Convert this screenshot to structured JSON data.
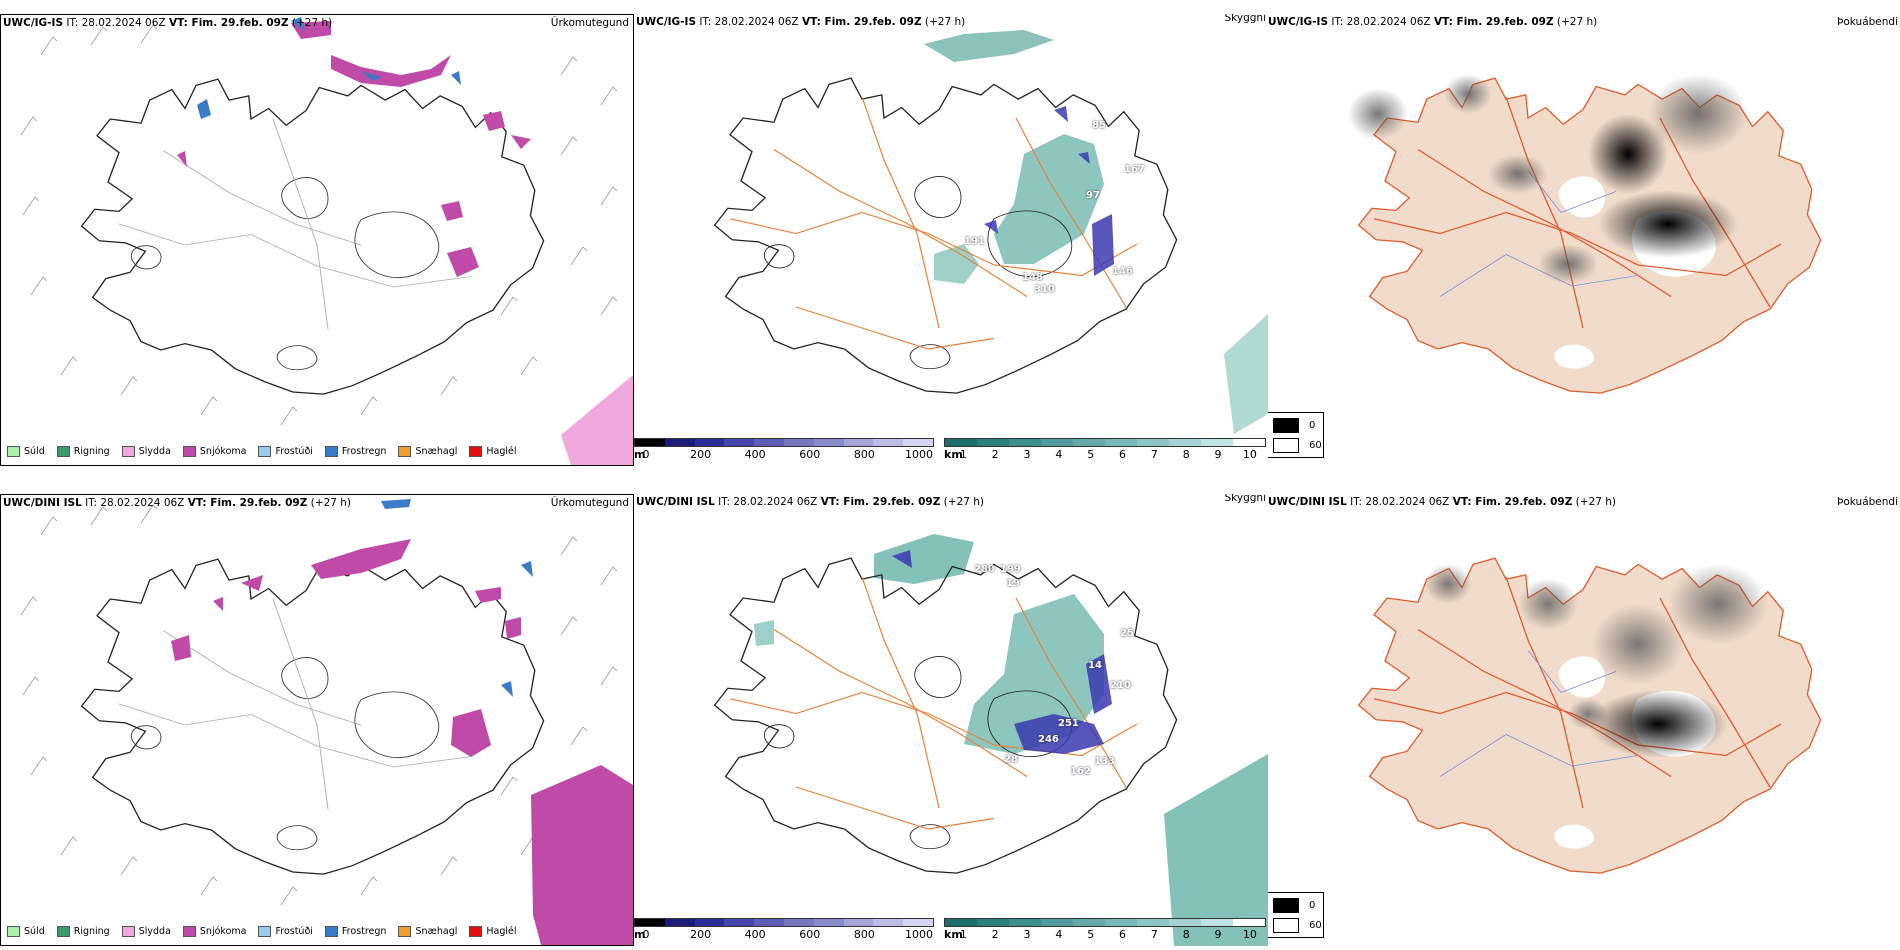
{
  "rows": [
    {
      "model": "UWC/IG-IS",
      "it_prefix": "IT: 28.02.2024 06Z",
      "vt_label": "VT: Fim. 29.feb. 09Z",
      "lead": "(+27 h)",
      "panel_titles": {
        "precip": "Úrkomutegund",
        "visibility": "Skyggni",
        "fog": "Þokuábendi"
      }
    },
    {
      "model": "UWC/DINI ISL",
      "it_prefix": "IT: 28.02.2024 06Z",
      "vt_label": "VT: Fim. 29.feb. 09Z",
      "lead": "(+27 h)",
      "panel_titles": {
        "precip": "Úrkomutegund",
        "visibility": "Skyggni",
        "fog": "Þokuábendi"
      }
    }
  ],
  "precip_legend": [
    {
      "label": "Súld",
      "color": "#a8f0a8"
    },
    {
      "label": "Rigning",
      "color": "#3c9a6a"
    },
    {
      "label": "Slydda",
      "color": "#f0a8dc"
    },
    {
      "label": "Snjókoma",
      "color": "#c04aa8"
    },
    {
      "label": "Frostúði",
      "color": "#9ccaf0"
    },
    {
      "label": "Frostregn",
      "color": "#3a7cc8"
    },
    {
      "label": "Snæhagl",
      "color": "#f0a030"
    },
    {
      "label": "Haglél",
      "color": "#e01010"
    }
  ],
  "ceiling_bar": {
    "unit": "m",
    "ticks": [
      "0",
      "200",
      "400",
      "600",
      "800",
      "1000"
    ],
    "colors": [
      "#000000",
      "#1c1c7a",
      "#2e2e9a",
      "#4646ac",
      "#5e5eb6",
      "#7676c2",
      "#8c8ccc",
      "#a4a4d8",
      "#bcbce4",
      "#d4d4ee"
    ]
  },
  "visibility_bar": {
    "unit": "km",
    "ticks": [
      "1",
      "2",
      "3",
      "4",
      "5",
      "6",
      "7",
      "8",
      "9",
      "10"
    ],
    "colors": [
      "#1e6e6e",
      "#2e7e7e",
      "#3e8e8e",
      "#509c9c",
      "#64aaaa",
      "#78b8b8",
      "#8ec6c6",
      "#a6d4d4",
      "#c0e2e2",
      "#ffffff"
    ]
  },
  "fog_legend": [
    {
      "label": "0",
      "color": "#000000"
    },
    {
      "label": "60",
      "color": "#ffffff"
    }
  ],
  "ceiling_labels": [
    [
      "85",
      "167",
      "97",
      "191",
      "148",
      "310",
      "146"
    ],
    [
      "280",
      "199",
      "19",
      "25",
      "246",
      "251",
      "162",
      "133",
      "210",
      "28",
      "14"
    ]
  ]
}
